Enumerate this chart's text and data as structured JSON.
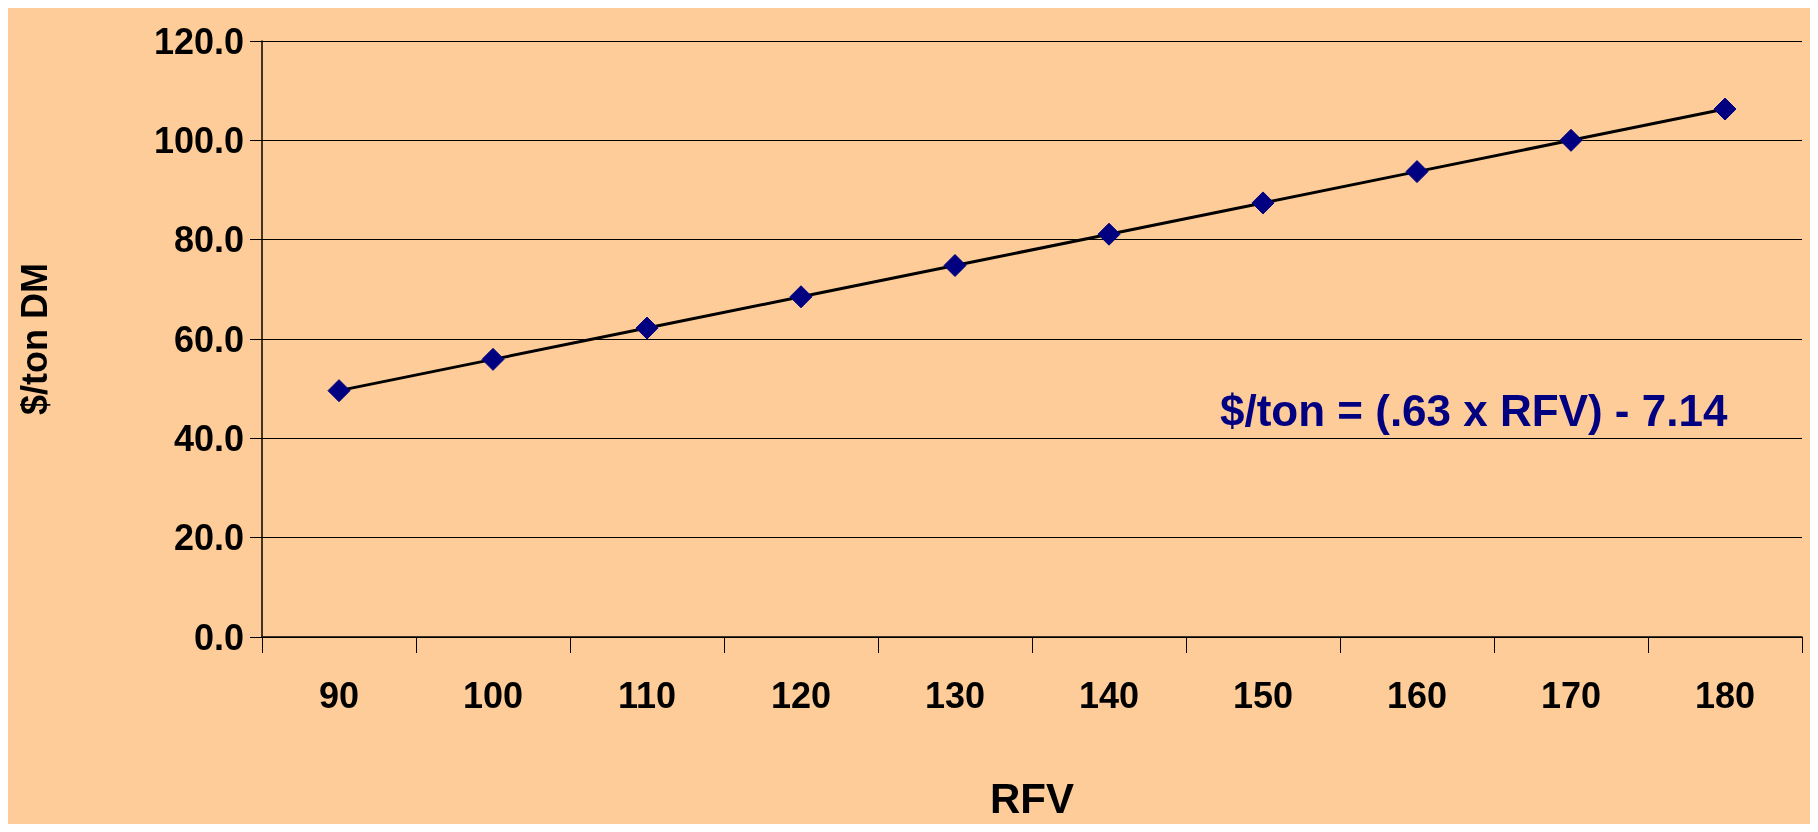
{
  "chart_data": {
    "type": "line",
    "xlabel": "RFV",
    "ylabel": "$/ton DM",
    "categories": [
      "90",
      "100",
      "110",
      "120",
      "130",
      "140",
      "150",
      "160",
      "170",
      "180"
    ],
    "series": [
      {
        "color": "#000080",
        "values": [
          49.6,
          55.9,
          62.2,
          68.5,
          74.8,
          81.1,
          87.4,
          93.7,
          100.0,
          106.3
        ]
      }
    ],
    "ylim": [
      0,
      120
    ],
    "yticks": [
      {
        "value": 0,
        "label": "0.0"
      },
      {
        "value": 20,
        "label": "20.0"
      },
      {
        "value": 40,
        "label": "40.0"
      },
      {
        "value": 60,
        "label": "60.0"
      },
      {
        "value": 80,
        "label": "80.0"
      },
      {
        "value": 100,
        "label": "100.0"
      },
      {
        "value": 120,
        "label": "120.0"
      }
    ],
    "grid": "y",
    "marker": "diamond",
    "line_style": "solid",
    "annotations": [
      "$/ton = (.63 x RFV) - 7.14"
    ]
  }
}
